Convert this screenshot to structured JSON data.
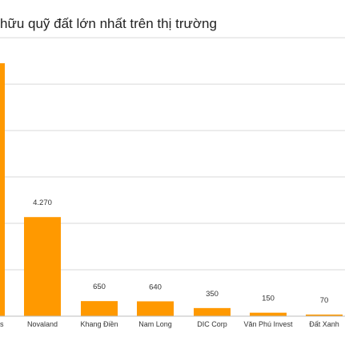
{
  "chart_data": {
    "type": "bar",
    "title": "hữu quỹ đất lớn nhất trên thị trường",
    "xlabel": "",
    "ylabel": "",
    "categories": [
      "s",
      "Novaland",
      "Khang Điền",
      "Nam Long",
      "DIC Corp",
      "Văn Phú Invest",
      "Đất Xanh"
    ],
    "values": [
      10900,
      4270,
      650,
      640,
      350,
      150,
      70
    ],
    "data_labels": [
      null,
      "4.270",
      "650",
      "640",
      "350",
      "150",
      "70"
    ],
    "ylim": [
      0,
      14000
    ],
    "grid": true,
    "bar_color": "#FF9900",
    "gridline_color": "#d9d9d9"
  }
}
